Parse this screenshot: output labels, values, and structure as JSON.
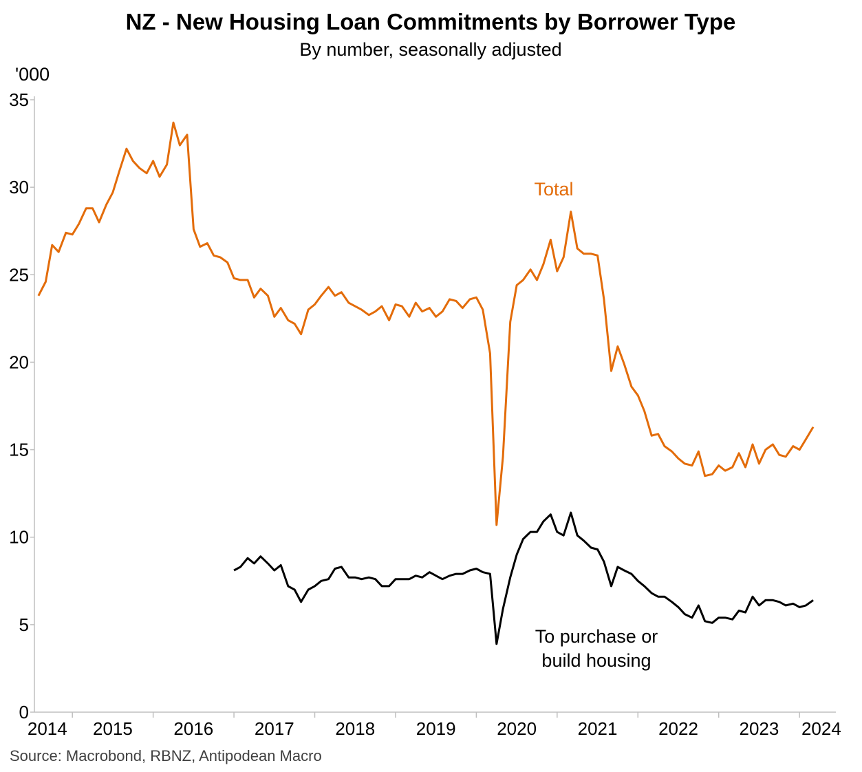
{
  "chart_data": {
    "type": "line",
    "title": "NZ - New Housing Loan Commitments by Borrower Type",
    "subtitle": "By number, seasonally adjusted",
    "y_label": "'000",
    "source": "Source: Macrobond, RBNZ, Antipodean Macro",
    "x": [
      2014.58,
      2014.67,
      2014.75,
      2014.83,
      2014.92,
      2015.0,
      2015.08,
      2015.17,
      2015.25,
      2015.33,
      2015.42,
      2015.5,
      2015.58,
      2015.67,
      2015.75,
      2015.83,
      2015.92,
      2016.0,
      2016.08,
      2016.17,
      2016.25,
      2016.33,
      2016.42,
      2016.5,
      2016.58,
      2016.67,
      2016.75,
      2016.83,
      2016.92,
      2017.0,
      2017.08,
      2017.17,
      2017.25,
      2017.33,
      2017.42,
      2017.5,
      2017.58,
      2017.67,
      2017.75,
      2017.83,
      2017.92,
      2018.0,
      2018.08,
      2018.17,
      2018.25,
      2018.33,
      2018.42,
      2018.5,
      2018.58,
      2018.67,
      2018.75,
      2018.83,
      2018.92,
      2019.0,
      2019.08,
      2019.17,
      2019.25,
      2019.33,
      2019.42,
      2019.5,
      2019.58,
      2019.67,
      2019.75,
      2019.83,
      2019.92,
      2020.0,
      2020.08,
      2020.17,
      2020.25,
      2020.33,
      2020.42,
      2020.5,
      2020.58,
      2020.67,
      2020.75,
      2020.83,
      2020.92,
      2021.0,
      2021.08,
      2021.17,
      2021.25,
      2021.33,
      2021.42,
      2021.5,
      2021.58,
      2021.67,
      2021.75,
      2021.83,
      2021.92,
      2022.0,
      2022.08,
      2022.17,
      2022.25,
      2022.33,
      2022.42,
      2022.5,
      2022.58,
      2022.67,
      2022.75,
      2022.83,
      2022.92,
      2023.0,
      2023.08,
      2023.17,
      2023.25,
      2023.33,
      2023.42,
      2023.5,
      2023.58,
      2023.67,
      2023.75,
      2023.83,
      2023.92,
      2024.0,
      2024.08,
      2024.17
    ],
    "series": [
      {
        "name": "Total",
        "color": "#e36c0a",
        "values": [
          23.8,
          24.6,
          26.7,
          26.3,
          27.4,
          27.3,
          27.9,
          28.8,
          28.8,
          28.0,
          29.0,
          29.7,
          30.9,
          32.2,
          31.5,
          31.1,
          30.8,
          31.5,
          30.6,
          31.3,
          33.7,
          32.4,
          33.0,
          27.6,
          26.6,
          26.8,
          26.1,
          26.0,
          25.7,
          24.8,
          24.7,
          24.7,
          23.7,
          24.2,
          23.8,
          22.6,
          23.1,
          22.4,
          22.2,
          21.6,
          23.0,
          23.3,
          23.8,
          24.3,
          23.8,
          24.0,
          23.4,
          23.2,
          23.0,
          22.7,
          22.9,
          23.2,
          22.4,
          23.3,
          23.2,
          22.6,
          23.4,
          22.9,
          23.1,
          22.6,
          22.9,
          23.6,
          23.5,
          23.1,
          23.6,
          23.7,
          23.0,
          20.5,
          10.7,
          14.6,
          22.3,
          24.4,
          24.7,
          25.3,
          24.7,
          25.6,
          27.0,
          25.2,
          26.0,
          28.6,
          26.5,
          26.2,
          26.2,
          26.1,
          23.6,
          19.5,
          20.9,
          19.9,
          18.6,
          18.1,
          17.2,
          15.8,
          15.9,
          15.2,
          14.9,
          14.5,
          14.2,
          14.1,
          14.9,
          13.5,
          13.6,
          14.1,
          13.8,
          14.0,
          14.8,
          14.0,
          15.3,
          14.2,
          15.0,
          15.3,
          14.7,
          14.6,
          15.2,
          15.0,
          15.6,
          16.3
        ]
      },
      {
        "name": "To purchase or build housing",
        "color": "#000000",
        "values": [
          null,
          null,
          null,
          null,
          null,
          null,
          null,
          null,
          null,
          null,
          null,
          null,
          null,
          null,
          null,
          null,
          null,
          null,
          null,
          null,
          null,
          null,
          null,
          null,
          null,
          null,
          null,
          null,
          null,
          8.1,
          8.3,
          8.8,
          8.5,
          8.9,
          8.5,
          8.1,
          8.4,
          7.2,
          7.0,
          6.3,
          7.0,
          7.2,
          7.5,
          7.6,
          8.2,
          8.3,
          7.7,
          7.7,
          7.6,
          7.7,
          7.6,
          7.2,
          7.2,
          7.6,
          7.6,
          7.6,
          7.8,
          7.7,
          8.0,
          7.8,
          7.6,
          7.8,
          7.9,
          7.9,
          8.1,
          8.2,
          8.0,
          7.9,
          3.9,
          5.9,
          7.7,
          9.0,
          9.9,
          10.3,
          10.3,
          10.9,
          11.3,
          10.3,
          10.1,
          11.4,
          10.1,
          9.8,
          9.4,
          9.3,
          8.6,
          7.2,
          8.3,
          8.1,
          7.9,
          7.5,
          7.2,
          6.8,
          6.6,
          6.6,
          6.3,
          6.0,
          5.6,
          5.4,
          6.1,
          5.2,
          5.1,
          5.4,
          5.4,
          5.3,
          5.8,
          5.7,
          6.6,
          6.1,
          6.4,
          6.4,
          6.3,
          6.1,
          6.2,
          6.0,
          6.1,
          6.4
        ]
      }
    ],
    "xlim": [
      2014.53,
      2024.45
    ],
    "xtick_marks": [
      2015,
      2016,
      2017,
      2018,
      2019,
      2020,
      2021,
      2022,
      2023,
      2024
    ],
    "xticks": [
      {
        "value": 2014.69,
        "label": "2014"
      },
      {
        "value": 2015.5,
        "label": "2015"
      },
      {
        "value": 2016.5,
        "label": "2016"
      },
      {
        "value": 2017.5,
        "label": "2017"
      },
      {
        "value": 2018.5,
        "label": "2018"
      },
      {
        "value": 2019.5,
        "label": "2019"
      },
      {
        "value": 2020.5,
        "label": "2020"
      },
      {
        "value": 2021.5,
        "label": "2021"
      },
      {
        "value": 2022.5,
        "label": "2022"
      },
      {
        "value": 2023.5,
        "label": "2023"
      },
      {
        "value": 2024.27,
        "label": "2024"
      }
    ],
    "ylim": [
      0,
      35
    ],
    "yticks": [
      0,
      5,
      10,
      15,
      20,
      25,
      30,
      35
    ],
    "grid": false
  }
}
